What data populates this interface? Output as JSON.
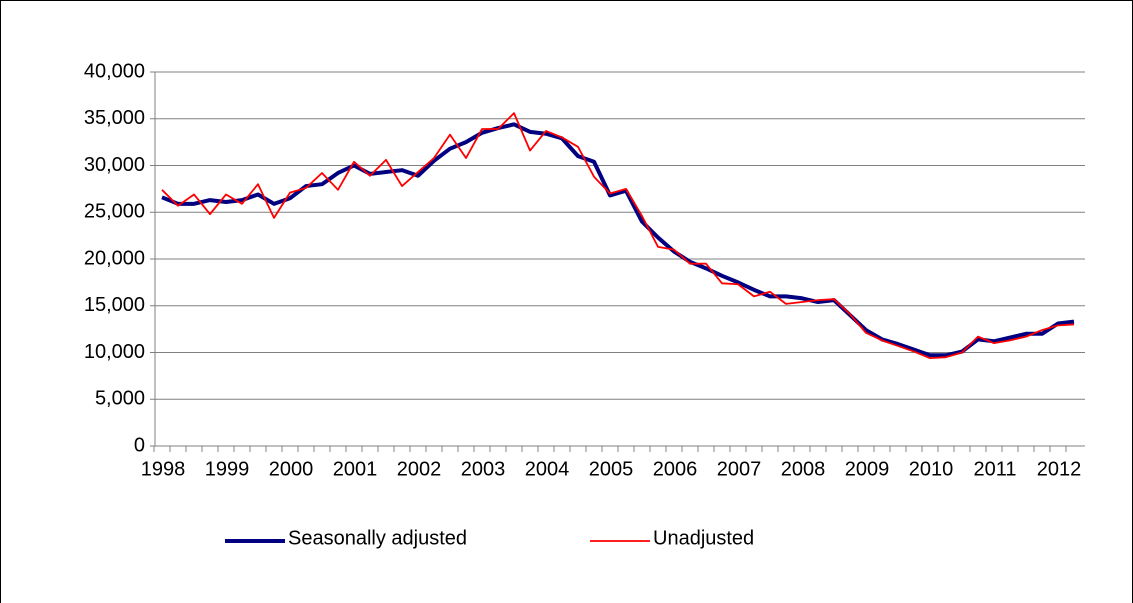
{
  "chart_data": {
    "type": "line",
    "categories": [
      "1998",
      null,
      null,
      null,
      "1999",
      null,
      null,
      null,
      "2000",
      null,
      null,
      null,
      "2001",
      null,
      null,
      null,
      "2002",
      null,
      null,
      null,
      "2003",
      null,
      null,
      null,
      "2004",
      null,
      null,
      null,
      "2005",
      null,
      null,
      null,
      "2006",
      null,
      null,
      null,
      "2007",
      null,
      null,
      null,
      "2008",
      null,
      null,
      null,
      "2009",
      null,
      null,
      null,
      "2010",
      null,
      null,
      null,
      "2011",
      null,
      null,
      null,
      "2012",
      null
    ],
    "series": [
      {
        "name": "Seasonally adjusted",
        "color": "#000080",
        "values": [
          26600,
          25900,
          25900,
          26300,
          26100,
          26300,
          26900,
          25900,
          26500,
          27800,
          28000,
          29200,
          30000,
          29100,
          29300,
          29500,
          28900,
          30500,
          31800,
          32500,
          33500,
          34000,
          34400,
          33600,
          33400,
          32900,
          31000,
          30400,
          26800,
          27300,
          24000,
          22300,
          20800,
          19700,
          19000,
          18200,
          17500,
          16700,
          16000,
          16000,
          15800,
          15400,
          15600,
          14000,
          12400,
          11400,
          10900,
          10300,
          9700,
          9700,
          10100,
          11400,
          11200,
          11600,
          12000,
          12000,
          13100,
          13300
        ]
      },
      {
        "name": "Unadjusted",
        "color": "#ff0000",
        "values": [
          27400,
          25700,
          26900,
          24800,
          26900,
          25900,
          28000,
          24400,
          27100,
          27600,
          29200,
          27400,
          30400,
          28900,
          30600,
          27800,
          29300,
          30800,
          33300,
          30800,
          33900,
          33900,
          35600,
          31600,
          33700,
          33000,
          32000,
          28800,
          27000,
          27500,
          24600,
          21300,
          21000,
          19500,
          19500,
          17400,
          17300,
          16000,
          16500,
          15200,
          15400,
          15600,
          15700,
          14100,
          12100,
          11300,
          10700,
          10100,
          9400,
          9500,
          10000,
          11700,
          11000,
          11300,
          11700,
          12400,
          12900,
          13000
        ]
      }
    ],
    "ylim": [
      0,
      40000
    ],
    "yticks": [
      0,
      {
        "value": 5000,
        "label": "5,000"
      },
      {
        "value": 10000,
        "label": "10,000"
      },
      {
        "value": 15000,
        "label": "15,000"
      },
      {
        "value": 20000,
        "label": "20,000"
      },
      {
        "value": 25000,
        "label": "25,000"
      },
      {
        "value": 30000,
        "label": "30,000"
      },
      {
        "value": 35000,
        "label": "35,000"
      },
      {
        "value": 40000,
        "label": "40,000"
      }
    ],
    "grid": true
  }
}
